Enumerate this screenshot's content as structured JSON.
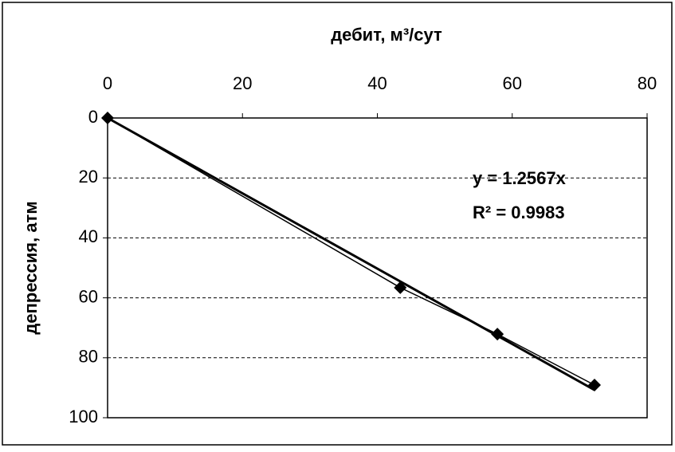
{
  "chart_data": {
    "type": "scatter",
    "x_label": "дебит, м³/сут",
    "y_label": "депрессия, атм",
    "x_axis_position": "top",
    "y_inverted": true,
    "xlim": [
      0,
      80
    ],
    "xticks": [
      0,
      20,
      40,
      60,
      80
    ],
    "ylim": [
      0,
      100
    ],
    "yticks": [
      0,
      20,
      40,
      60,
      80,
      100
    ],
    "grid": true,
    "series": [
      {
        "color": "#000000",
        "x": [
          0,
          43.4,
          57.8,
          72.2
        ],
        "values": [
          0,
          56.6,
          72.1,
          89.1
        ]
      }
    ],
    "trendline": {
      "slope": 1.2567,
      "label": "y = 1.2567x",
      "r2_label": "R² = 0.9983"
    }
  }
}
